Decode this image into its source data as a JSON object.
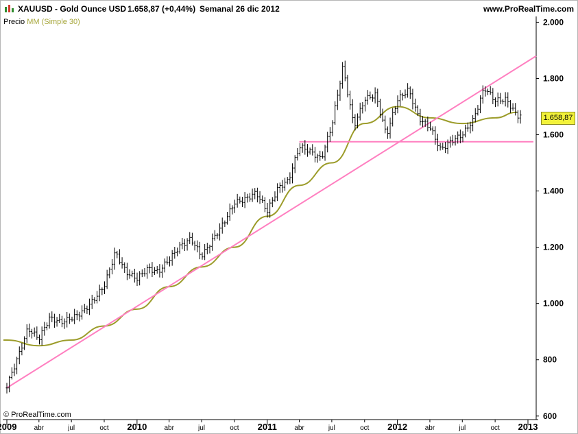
{
  "header": {
    "symbol": "XAUUSD - Gold Ounce USD",
    "price": "1.658,87 (+0,44%)",
    "period": "Semanal  26 dic 2012",
    "site": "www.ProRealTime.com"
  },
  "legend": {
    "price_label": "Precio",
    "ma_label": "MM (Simple 30)"
  },
  "copyright": "© ProRealTime.com",
  "last_price_label": "1.658,87",
  "colors": {
    "candles": "#000000",
    "ma": "#9c9c2a",
    "trendline": "#ff7fc0",
    "support": "#ff7fc0",
    "price_tag": "#f2f23a"
  },
  "chart_data": {
    "type": "line",
    "title": "XAUUSD - Gold Ounce USD",
    "ylim": [
      580,
      2040
    ],
    "y_ticks": [
      600,
      800,
      1000,
      1200,
      1400,
      1600,
      1800,
      2000
    ],
    "y_tick_labels": [
      "600",
      "800",
      "1.000",
      "1.200",
      "1.400",
      "1.600",
      "1.800",
      "2.000"
    ],
    "x_tick_labels": [
      "2009",
      "abr",
      "jul",
      "oct",
      "2010",
      "abr",
      "jul",
      "oct",
      "2011",
      "abr",
      "jul",
      "oct",
      "2012",
      "abr",
      "jul",
      "oct",
      "2013"
    ],
    "x_tick_dates": [
      "2009-01",
      "2009-04",
      "2009-07",
      "2009-10",
      "2010-01",
      "2010-04",
      "2010-07",
      "2010-10",
      "2011-01",
      "2011-04",
      "2011-07",
      "2011-10",
      "2012-01",
      "2012-04",
      "2012-07",
      "2012-10",
      "2013-01"
    ],
    "series": [
      {
        "name": "Precio",
        "type": "ohlc",
        "x": [
          "2009-01",
          "2009-02",
          "2009-03",
          "2009-04",
          "2009-05",
          "2009-06",
          "2009-07",
          "2009-08",
          "2009-09",
          "2009-10",
          "2009-11",
          "2009-12",
          "2010-01",
          "2010-02",
          "2010-03",
          "2010-04",
          "2010-05",
          "2010-06",
          "2010-07",
          "2010-08",
          "2010-09",
          "2010-10",
          "2010-11",
          "2010-12",
          "2011-01",
          "2011-02",
          "2011-03",
          "2011-04",
          "2011-05",
          "2011-06",
          "2011-07",
          "2011-08",
          "2011-09",
          "2011-10",
          "2011-11",
          "2011-12",
          "2012-01",
          "2012-02",
          "2012-03",
          "2012-04",
          "2012-05",
          "2012-06",
          "2012-07",
          "2012-08",
          "2012-09",
          "2012-10",
          "2012-11",
          "2012-12"
        ],
        "values": [
          720,
          820,
          920,
          880,
          950,
          930,
          940,
          960,
          1000,
          1050,
          1170,
          1100,
          1080,
          1120,
          1110,
          1160,
          1210,
          1240,
          1180,
          1240,
          1300,
          1370,
          1380,
          1400,
          1330,
          1410,
          1430,
          1550,
          1530,
          1500,
          1620,
          1830,
          1620,
          1720,
          1740,
          1600,
          1730,
          1770,
          1670,
          1640,
          1560,
          1590,
          1610,
          1660,
          1770,
          1720,
          1720,
          1658.87
        ]
      },
      {
        "name": "MM (Simple 30)",
        "type": "line",
        "x": [
          "2009-01",
          "2009-04",
          "2009-07",
          "2009-10",
          "2010-01",
          "2010-04",
          "2010-07",
          "2010-10",
          "2011-01",
          "2011-04",
          "2011-07",
          "2011-10",
          "2012-01",
          "2012-04",
          "2012-07",
          "2012-10",
          "2012-12"
        ],
        "values": [
          870,
          850,
          870,
          920,
          980,
          1060,
          1130,
          1200,
          1310,
          1420,
          1500,
          1640,
          1700,
          1660,
          1640,
          1660,
          1680
        ]
      }
    ],
    "annotations": [
      {
        "type": "trendline",
        "from": [
          "2009-01",
          700
        ],
        "to": [
          "2013-01",
          1880
        ]
      },
      {
        "type": "horizontal",
        "y": 1575,
        "from": "2011-04",
        "to": "2012-12"
      }
    ],
    "grid": false
  }
}
